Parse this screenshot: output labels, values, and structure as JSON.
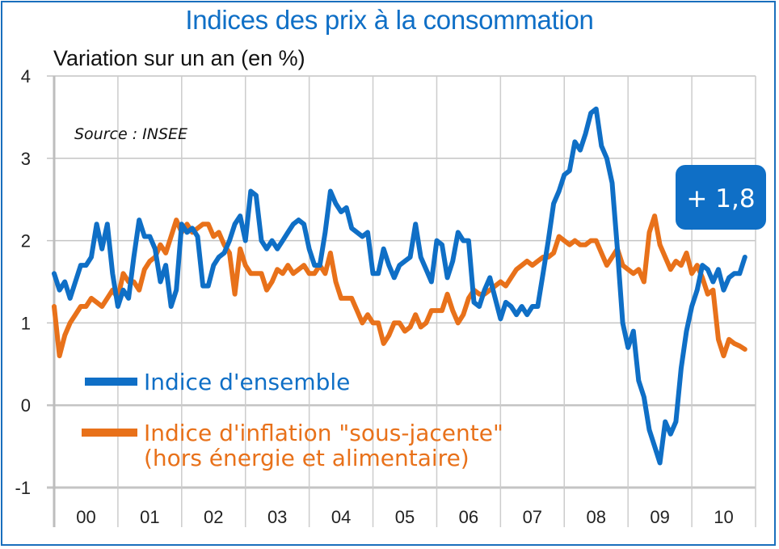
{
  "chart_data": {
    "type": "line",
    "title": "Indices des prix à la consommation",
    "subtitle": "Variation sur un an (en %)",
    "source": "Source : INSEE",
    "xlabel": "",
    "ylabel": "Variation sur un an (en %)",
    "ylim": [
      -1,
      4
    ],
    "yticks": [
      "-1",
      "0",
      "1",
      "2",
      "3",
      "4"
    ],
    "ytick_values": [
      -1,
      0,
      1,
      2,
      3,
      4
    ],
    "categories": [
      "00",
      "01",
      "02",
      "03",
      "04",
      "05",
      "06",
      "07",
      "08",
      "09",
      "10"
    ],
    "grid": true,
    "legend_position": "bottom-left",
    "annotation": "+ 1,8",
    "series": [
      {
        "name": "Indice d'ensemble",
        "color": "#0f6fc6",
        "values": [
          1.6,
          1.4,
          1.5,
          1.3,
          1.5,
          1.7,
          1.7,
          1.8,
          2.2,
          1.9,
          2.2,
          1.6,
          1.2,
          1.4,
          1.3,
          1.8,
          2.25,
          2.05,
          2.05,
          1.9,
          1.5,
          1.7,
          1.2,
          1.4,
          2.2,
          2.1,
          2.15,
          2.05,
          1.45,
          1.45,
          1.7,
          1.8,
          1.85,
          2.0,
          2.2,
          2.3,
          2.0,
          2.6,
          2.55,
          2.0,
          1.9,
          2.0,
          1.9,
          2.0,
          2.1,
          2.2,
          2.25,
          2.2,
          1.9,
          1.7,
          1.7,
          2.1,
          2.6,
          2.45,
          2.35,
          2.4,
          2.15,
          2.1,
          2.05,
          2.1,
          1.6,
          1.6,
          1.9,
          1.7,
          1.55,
          1.7,
          1.75,
          1.8,
          2.2,
          1.8,
          1.65,
          1.5,
          2.0,
          1.95,
          1.55,
          1.75,
          2.1,
          2.0,
          2.0,
          1.25,
          1.2,
          1.4,
          1.55,
          1.3,
          1.05,
          1.25,
          1.2,
          1.1,
          1.2,
          1.1,
          1.2,
          1.2,
          1.6,
          2.0,
          2.45,
          2.6,
          2.8,
          2.85,
          3.2,
          3.1,
          3.3,
          3.55,
          3.6,
          3.15,
          3.0,
          2.7,
          1.9,
          1.0,
          0.7,
          0.9,
          0.3,
          0.1,
          -0.3,
          -0.5,
          -0.7,
          -0.2,
          -0.35,
          -0.2,
          0.45,
          0.9,
          1.2,
          1.4,
          1.7,
          1.65,
          1.5,
          1.65,
          1.4,
          1.55,
          1.6,
          1.6,
          1.8
        ]
      },
      {
        "name": "Indice d'inflation \"sous-jacente\" (hors énergie et alimentaire)",
        "color": "#e8711a",
        "values": [
          1.2,
          0.6,
          0.85,
          1.0,
          1.1,
          1.2,
          1.2,
          1.3,
          1.25,
          1.2,
          1.3,
          1.4,
          1.3,
          1.6,
          1.5,
          1.5,
          1.4,
          1.65,
          1.75,
          1.8,
          1.95,
          1.85,
          2.05,
          2.25,
          2.1,
          2.2,
          2.1,
          2.15,
          2.2,
          2.2,
          2.05,
          2.1,
          1.95,
          1.85,
          1.35,
          1.9,
          1.7,
          1.6,
          1.6,
          1.6,
          1.4,
          1.5,
          1.65,
          1.6,
          1.7,
          1.6,
          1.65,
          1.7,
          1.6,
          1.6,
          1.7,
          1.6,
          1.85,
          1.5,
          1.3,
          1.3,
          1.3,
          1.15,
          1.0,
          1.1,
          1.0,
          1.0,
          0.75,
          0.85,
          1.0,
          1.0,
          0.9,
          0.95,
          1.1,
          0.95,
          1.0,
          1.15,
          1.15,
          1.15,
          1.35,
          1.15,
          1.0,
          1.1,
          1.3,
          1.4,
          1.35,
          1.35,
          1.4,
          1.45,
          1.5,
          1.45,
          1.55,
          1.65,
          1.7,
          1.75,
          1.7,
          1.75,
          1.8,
          1.8,
          1.85,
          2.05,
          2.0,
          1.95,
          2.0,
          1.95,
          1.95,
          2.0,
          2.0,
          1.85,
          1.7,
          1.8,
          1.9,
          1.7,
          1.65,
          1.6,
          1.65,
          1.5,
          2.1,
          2.3,
          1.95,
          1.8,
          1.65,
          1.75,
          1.7,
          1.85,
          1.6,
          1.7,
          1.55,
          1.35,
          1.4,
          0.8,
          0.6,
          0.8,
          0.75,
          0.72,
          0.68
        ]
      }
    ]
  }
}
